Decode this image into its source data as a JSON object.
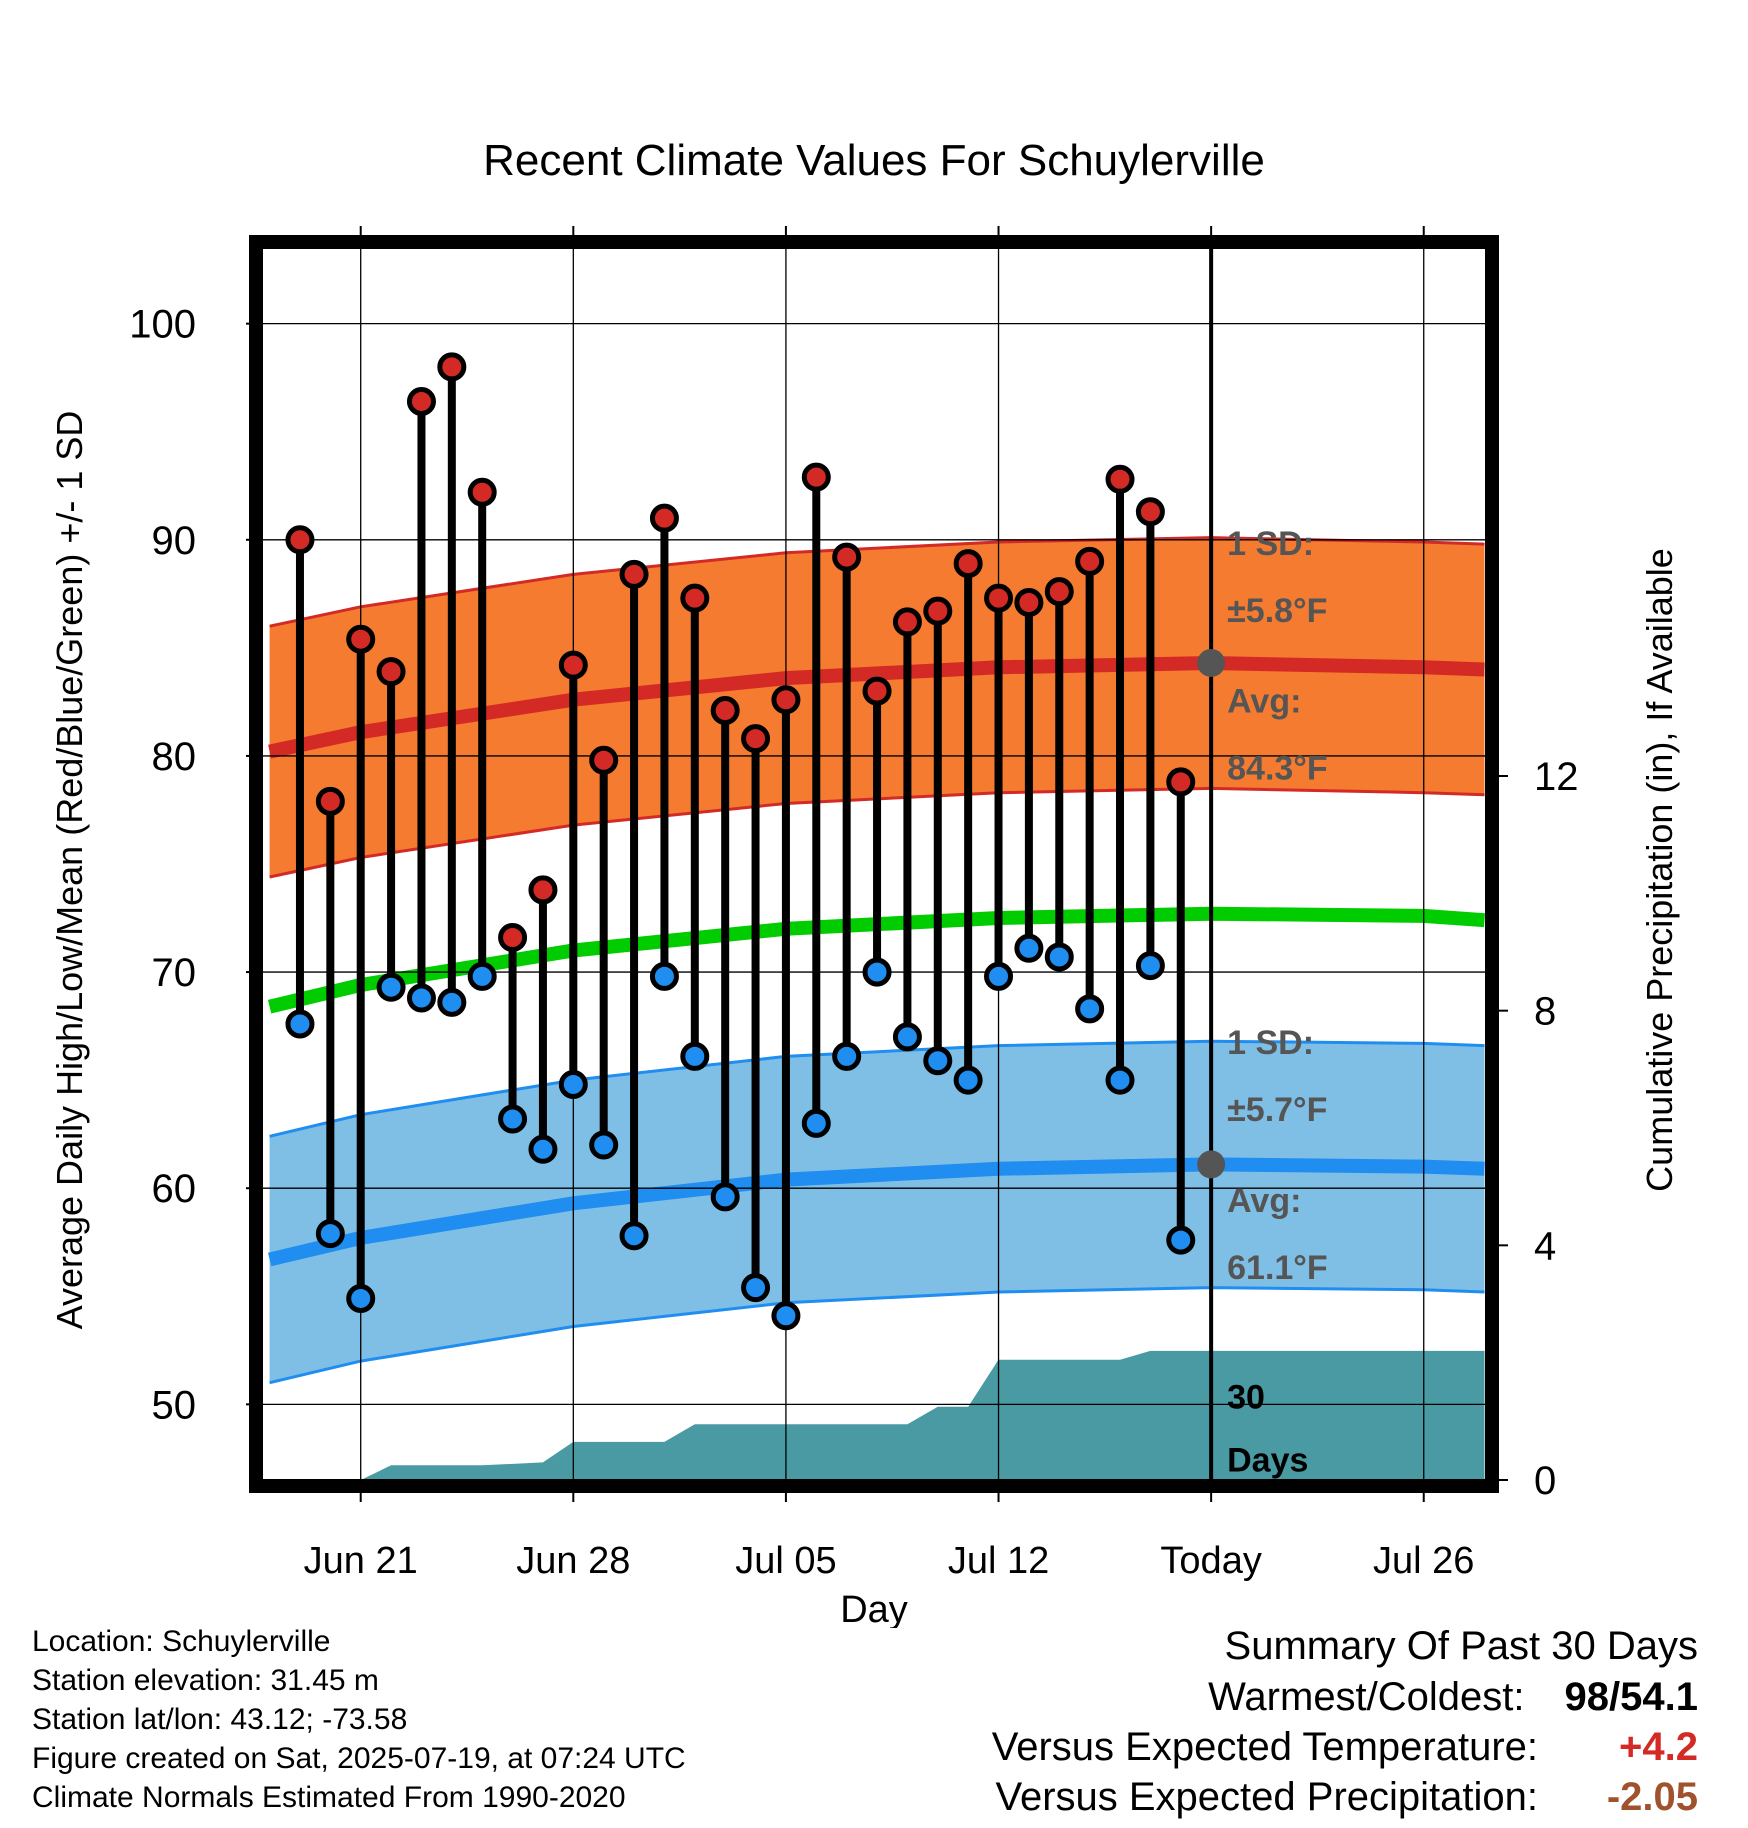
{
  "chart_data": {
    "type": "line",
    "title": "Recent Climate Values For Schuylerville",
    "xlabel": "Day",
    "ylabel": "Average Daily High/Low/Mean (Red/Blue/Green) +/- 1 SD",
    "y2label": "Cumulative Precipitation (in), If Available",
    "ylim": [
      46.5,
      103.5
    ],
    "y2lim": [
      0,
      21
    ],
    "yticks": [
      "50",
      "60",
      "70",
      "80",
      "90",
      "100"
    ],
    "y2ticks": [
      "0",
      "4",
      "8",
      "12"
    ],
    "xticks": [
      "Jun 21",
      "Jun 28",
      "Jul 05",
      "Jul 12",
      "Today",
      "Jul 26"
    ],
    "grid": true,
    "today_label": "Today",
    "days": [
      "Jun 19",
      "Jun 20",
      "Jun 21",
      "Jun 22",
      "Jun 23",
      "Jun 24",
      "Jun 25",
      "Jun 26",
      "Jun 27",
      "Jun 28",
      "Jun 29",
      "Jun 30",
      "Jul 01",
      "Jul 02",
      "Jul 03",
      "Jul 04",
      "Jul 05",
      "Jul 06",
      "Jul 07",
      "Jul 08",
      "Jul 09",
      "Jul 10",
      "Jul 11",
      "Jul 12",
      "Jul 13",
      "Jul 14",
      "Jul 15",
      "Jul 16",
      "Jul 17",
      "Jul 18"
    ],
    "highs": [
      90.0,
      77.9,
      85.4,
      83.9,
      96.4,
      98.0,
      92.2,
      71.6,
      73.8,
      84.2,
      79.8,
      88.4,
      91.0,
      87.3,
      82.1,
      80.8,
      82.6,
      92.9,
      89.2,
      83.0,
      86.2,
      86.7,
      88.9,
      87.3,
      87.1,
      87.6,
      89.0,
      92.8,
      91.3,
      78.8
    ],
    "lows": [
      67.6,
      57.9,
      54.9,
      69.3,
      68.8,
      68.6,
      69.8,
      63.2,
      61.8,
      64.8,
      62.0,
      57.8,
      69.8,
      66.1,
      59.6,
      55.4,
      54.1,
      63.0,
      66.1,
      70.0,
      67.0,
      65.9,
      65.0,
      69.8,
      71.1,
      70.7,
      68.3,
      65.0,
      70.3,
      57.6
    ],
    "normals": {
      "days": [
        "Jun 18",
        "Jun 21",
        "Jun 28",
        "Jul 05",
        "Jul 12",
        "Jul 19",
        "Jul 26",
        "Jul 28"
      ],
      "high_avg": [
        80.2,
        81.1,
        82.6,
        83.6,
        84.1,
        84.3,
        84.1,
        84.0
      ],
      "low_avg": [
        56.7,
        57.7,
        59.3,
        60.4,
        60.9,
        61.1,
        61.0,
        60.9
      ],
      "mean": [
        68.4,
        69.4,
        71.0,
        72.0,
        72.5,
        72.7,
        72.6,
        72.4
      ],
      "high_sd": 5.8,
      "low_sd": 5.7
    },
    "precip": {
      "days": [
        "Jun 21",
        "Jun 22",
        "Jun 25",
        "Jun 27",
        "Jun 28",
        "Jul 01",
        "Jul 02",
        "Jul 05",
        "Jul 09",
        "Jul 10",
        "Jul 11",
        "Jul 12",
        "Jul 16",
        "Jul 17",
        "Jul 19",
        "Jul 28"
      ],
      "cumulative": [
        0.0,
        0.25,
        0.25,
        0.3,
        0.65,
        0.65,
        0.95,
        0.95,
        0.95,
        1.25,
        1.25,
        2.05,
        2.05,
        2.2,
        2.2,
        2.2
      ]
    },
    "annotations": {
      "high_sd_label": "1 SD:",
      "high_sd_value": "±5.8°F",
      "high_avg_label": "Avg:",
      "high_avg_value": "84.3°F",
      "low_sd_label": "1 SD:",
      "low_sd_value": "±5.7°F",
      "low_avg_label": "Avg:",
      "low_avg_value": "61.1°F",
      "precip_label_1": "30",
      "precip_label_2": "Days",
      "high_avg_today": 84.3,
      "low_avg_today": 61.1
    },
    "colors": {
      "high_band": "#f47b30",
      "high_line": "#d42a25",
      "low_band": "#7fbfe5",
      "low_line": "#1f8ef0",
      "mean_line": "#00cc00",
      "precip": "#4a9aa3",
      "high_dot": "#d42a25",
      "low_dot": "#1f8ef0",
      "annotation": "#555555"
    }
  },
  "footer": {
    "location": "Location: Schuylerville",
    "elevation": "Station elevation: 31.45 m",
    "latlon": "Station lat/lon: 43.12; -73.58",
    "created": "Figure created on Sat, 2025-07-19, at 07:24 UTC",
    "normals": "Climate Normals Estimated From 1990-2020"
  },
  "summary": {
    "title": "Summary Of Past 30 Days",
    "warmest_label": "Warmest/Coldest:",
    "warmest_value": "98/54.1",
    "temp_label": "Versus Expected Temperature:",
    "temp_value": "+4.2",
    "temp_color": "#d42a25",
    "precip_label": "Versus Expected Precipitation:",
    "precip_value": "-2.05",
    "precip_color": "#a0522d"
  }
}
